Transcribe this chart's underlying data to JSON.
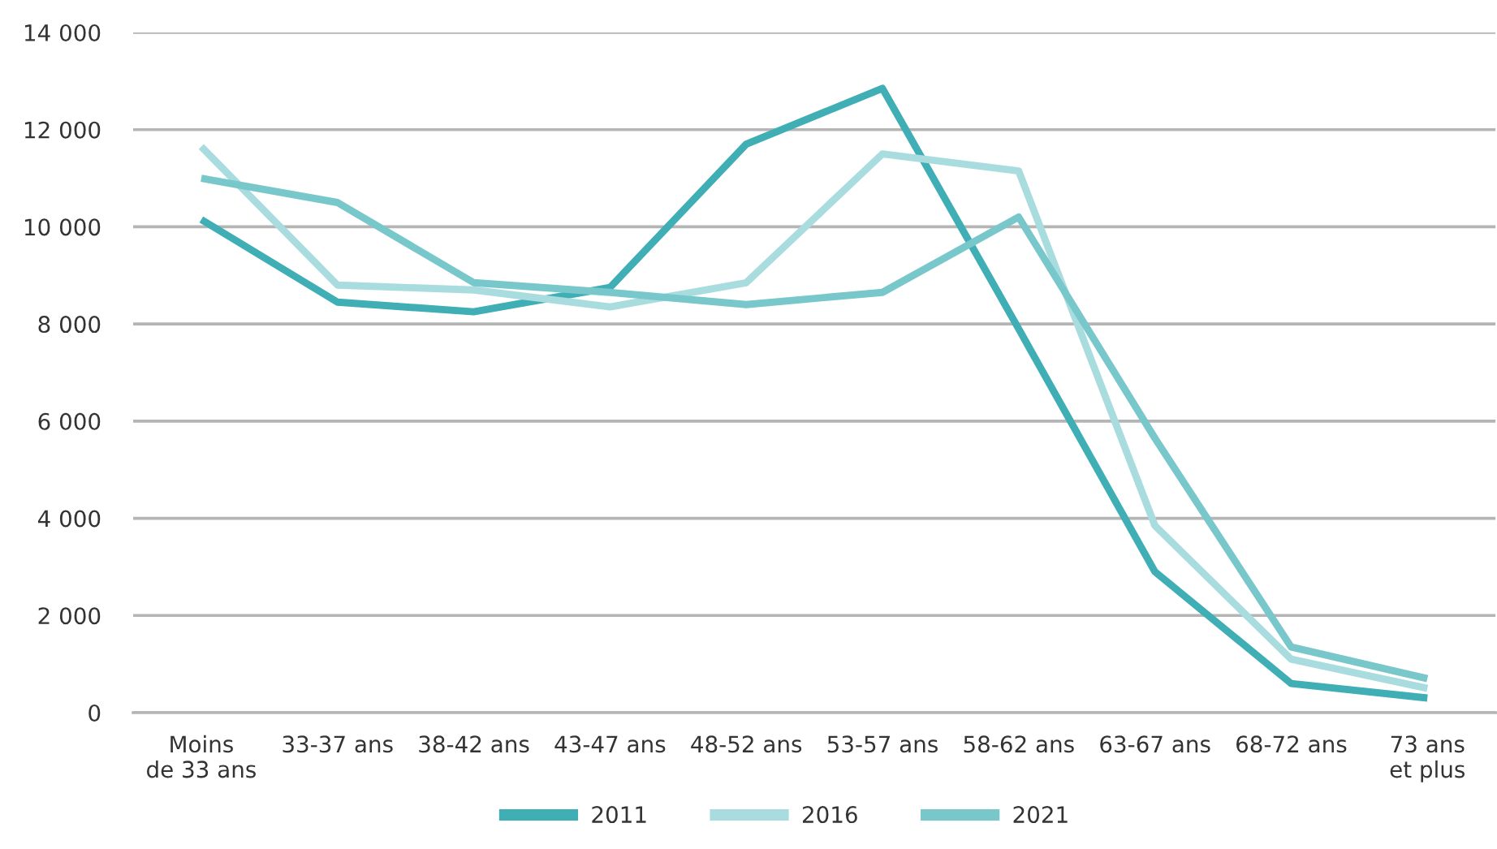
{
  "chart_data": {
    "type": "line",
    "categories": [
      "Moins\nde 33 ans",
      "33-37 ans",
      "38-42 ans",
      "43-47 ans",
      "48-52 ans",
      "53-57 ans",
      "58-62 ans",
      "63-67 ans",
      "68-72 ans",
      "73 ans\net plus"
    ],
    "series": [
      {
        "name": "2011",
        "color": "#40aeb5",
        "values": [
          10150,
          8450,
          8250,
          8750,
          11700,
          12850,
          7900,
          2900,
          600,
          300
        ]
      },
      {
        "name": "2016",
        "color": "#a9dcdf",
        "values": [
          11650,
          8800,
          8700,
          8350,
          8850,
          11500,
          11150,
          3850,
          1100,
          500
        ]
      },
      {
        "name": "2021",
        "color": "#78c8cb",
        "values": [
          11000,
          10500,
          8850,
          8650,
          8400,
          8650,
          10200,
          5650,
          1350,
          700
        ]
      }
    ],
    "ylim": [
      0,
      14000
    ],
    "yticks": [
      0,
      {
        "value": 2000,
        "label": "2 000"
      },
      {
        "value": 4000,
        "label": "4 000"
      },
      {
        "value": 6000,
        "label": "6 000"
      },
      {
        "value": 8000,
        "label": "8 000"
      },
      {
        "value": 10000,
        "label": "10 000"
      },
      {
        "value": 12000,
        "label": "12 000"
      },
      {
        "value": 14000,
        "label": "14 000"
      }
    ],
    "grid": "y",
    "legend": "bottom",
    "marker": "none",
    "line_style": "solid"
  }
}
